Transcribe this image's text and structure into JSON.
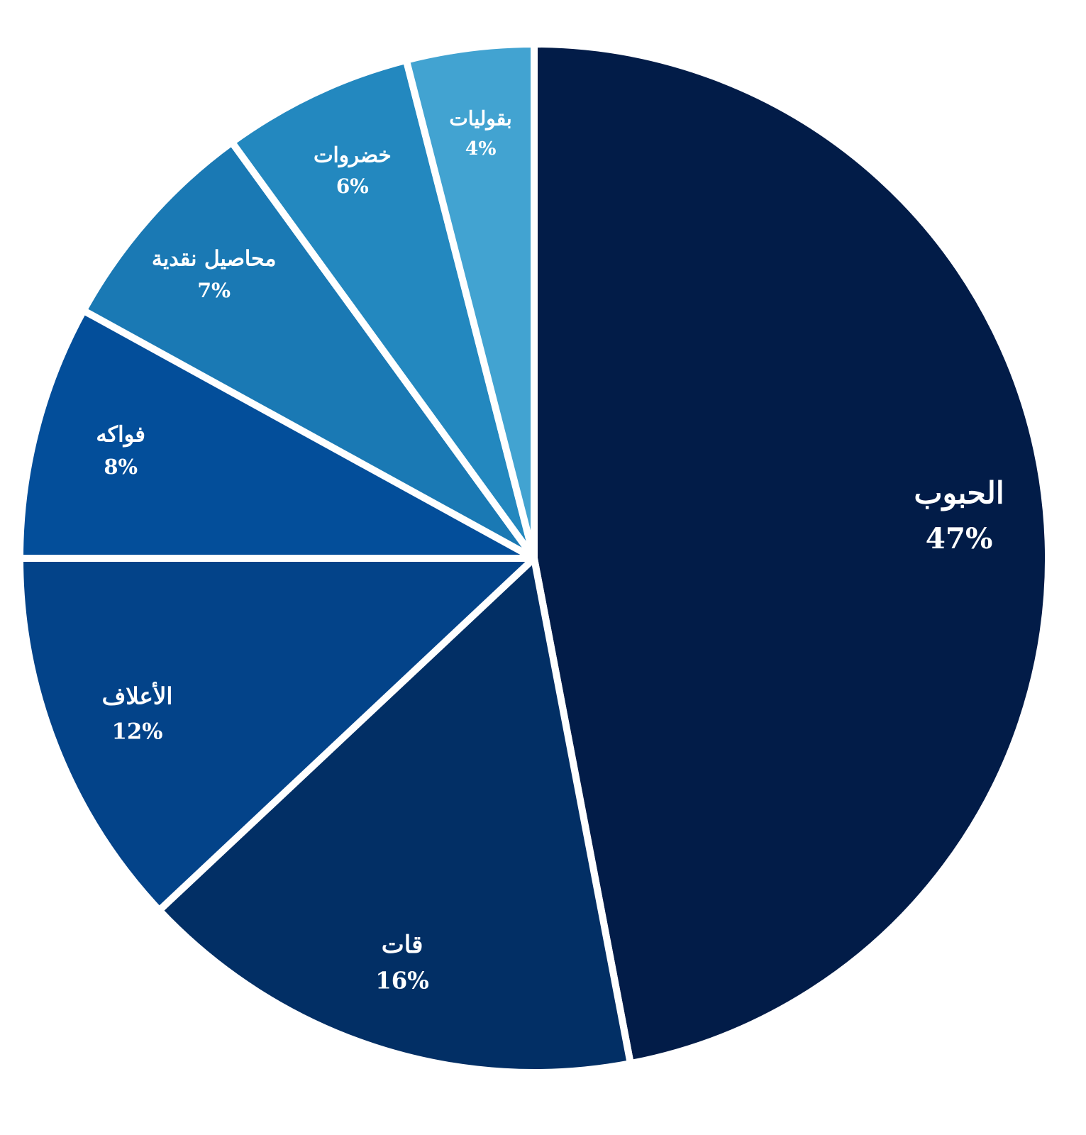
{
  "chart_data": {
    "type": "pie",
    "categories": [
      "الحبوب",
      "قات",
      "الأعلاف",
      "فواكه",
      "محاصيل نقدية",
      "خضروات",
      "بقوليات"
    ],
    "values": [
      47,
      16,
      12,
      8,
      7,
      6,
      4
    ],
    "value_labels": [
      "47%",
      "16%",
      "12%",
      "8%",
      "7%",
      "6%",
      "4%"
    ],
    "colors": [
      "#021c48",
      "#022f65",
      "#034389",
      "#034e9a",
      "#1a79b4",
      "#2388bf",
      "#42a3d1"
    ]
  }
}
